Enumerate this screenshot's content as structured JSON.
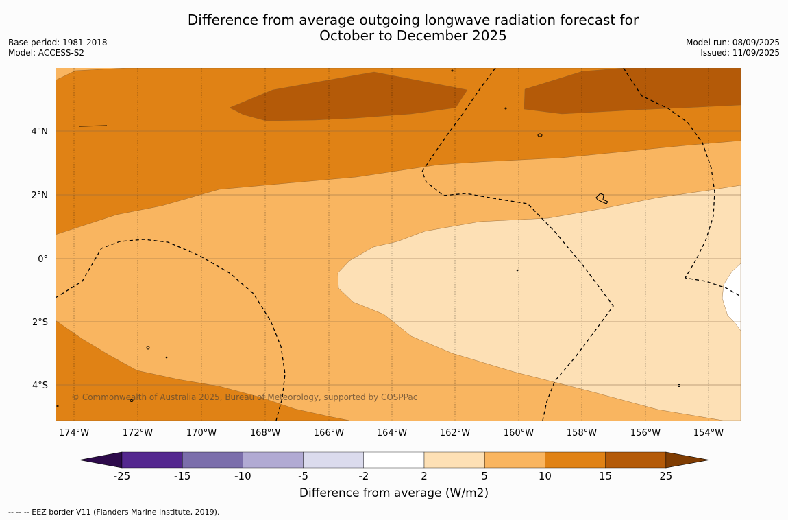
{
  "title_line1": "Difference from average outgoing longwave radiation forecast for",
  "title_line2": "October to December 2025",
  "meta_left": {
    "base_period": "Base period: 1981-2018",
    "model": "Model: ACCESS-S2"
  },
  "meta_right": {
    "model_run": "Model run: 08/09/2025",
    "issued": "Issued: 11/09/2025"
  },
  "map": {
    "lon_labels": [
      "174°W",
      "172°W",
      "170°W",
      "168°W",
      "166°W",
      "164°W",
      "162°W",
      "160°W",
      "158°W",
      "156°W",
      "154°W"
    ],
    "lat_labels": [
      "4°N",
      "2°N",
      "0°",
      "2°S",
      "4°S"
    ],
    "copyright": "© Commonwealth of Australia 2025, Bureau of Meteorology, supported by COSPPac",
    "category_colors": {
      "5_to_10": "#f9b560",
      "2_to_5": "#fde0b5",
      "10_to_15": "#e08215",
      "15_to_25": "#b45a08",
      "-2_to_2": "#ffffff"
    },
    "grid_color": "#8a6a45"
  },
  "colorbar": {
    "title": "Difference from average (W/m2)",
    "ticks": [
      "-25",
      "-15",
      "-10",
      "-5",
      "-2",
      "2",
      "5",
      "10",
      "15",
      "25"
    ],
    "colors": [
      "#54278f",
      "#7b6eab",
      "#b1aad3",
      "#dbdbed",
      "#ffffff",
      "#fde0b5",
      "#f9b560",
      "#e08215",
      "#b45a08"
    ],
    "low_extend_color": "#2d0a4b",
    "high_extend_color": "#7f3c02"
  },
  "footnote": "--  --  -- EEZ border V11 (Flanders Marine Institute, 2019)."
}
